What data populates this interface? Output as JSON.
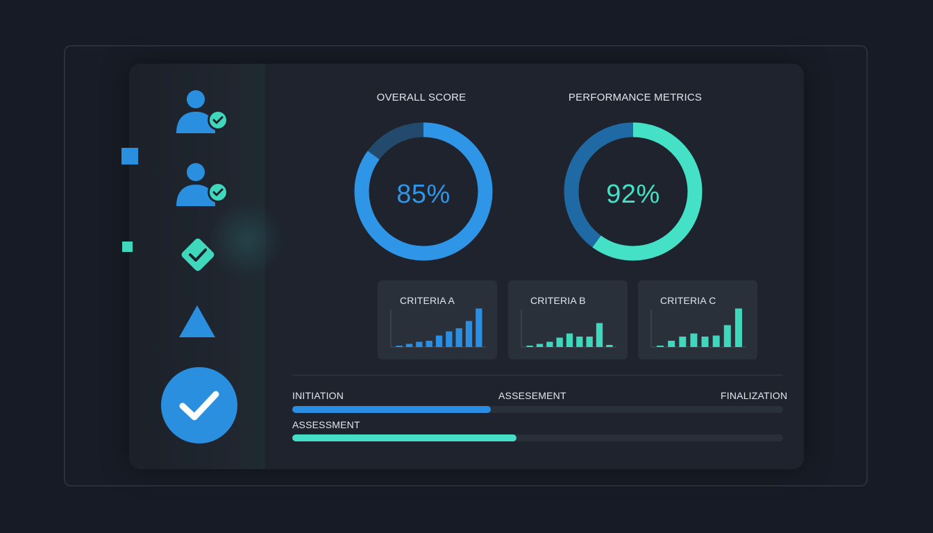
{
  "overall": {
    "title": "OVERALL SCORE",
    "value_label": "85%",
    "percent": 85,
    "color": "#2f95e6"
  },
  "performance": {
    "title": "PERFORMANCE METRICS",
    "value_label": "92%",
    "percent": 92,
    "color": "#45e1c6",
    "track_color": "#1f6aa5"
  },
  "criteria": [
    {
      "label": "CRITERIA A",
      "color": "#2a8ee3",
      "values": [
        1,
        3,
        5,
        6,
        11,
        15,
        18,
        25,
        37
      ]
    },
    {
      "label": "CRITERIA B",
      "color": "#3fd8bd",
      "values": [
        1,
        3,
        5,
        9,
        13,
        10,
        10,
        23,
        2
      ]
    },
    {
      "label": "CRITERIA C",
      "color": "#3fd8bd",
      "values": [
        1,
        6,
        10,
        13,
        10,
        11,
        21,
        37
      ]
    }
  ],
  "progress": {
    "stages": [
      "INITIATION",
      "ASSESEMENT",
      "FINALIZATION"
    ],
    "row2_label": "ASSESSMENT",
    "row1_fraction": 0.405,
    "row2_fraction": 0.457,
    "row1_color": "#2a8ee3",
    "row2_color": "#44dfc4"
  },
  "sidebar": {
    "icons": [
      "user-verified-icon",
      "user-verified-icon",
      "diamond-check-icon",
      "triangle-icon",
      "check-circle-icon"
    ],
    "primary_color": "#2b8fe0",
    "accent_color": "#3fd8bd"
  }
}
